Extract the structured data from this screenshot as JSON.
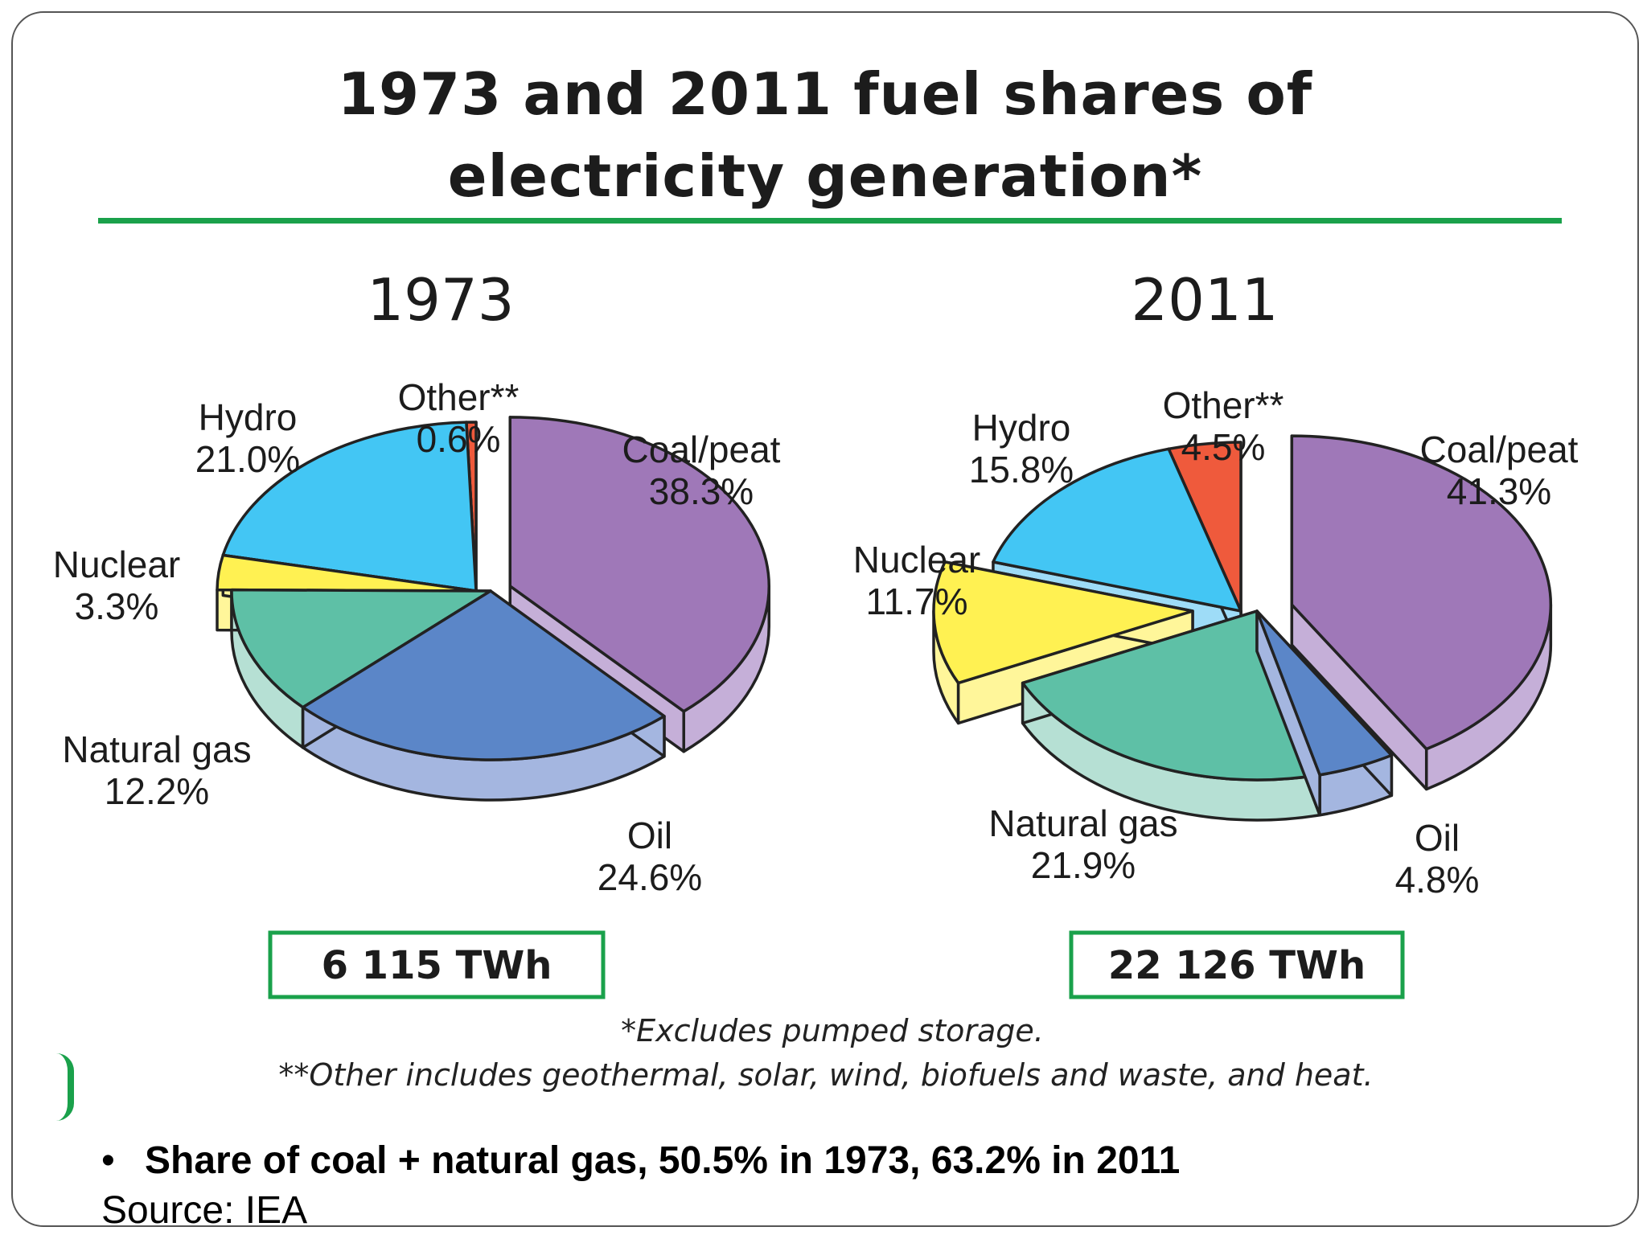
{
  "slide": {
    "title_line1": "1973 and 2011 fuel shares of",
    "title_line2": "electricity generation*",
    "footnote1": "*Excludes pumped storage.",
    "footnote2": "**Other includes geothermal, solar, wind, biofuels and waste, and heat.",
    "bullet": "Share of coal + natural gas, 50.5% in 1973, 63.2% in 2011",
    "source": "Source: IEA"
  },
  "chart_data": [
    {
      "type": "pie",
      "title": "1973",
      "total": "6 115 TWh",
      "slices": [
        {
          "label": "Coal/peat",
          "value": 38.3,
          "display": "38.3%",
          "color": "#9f78b8",
          "side_color": "#c5afd8"
        },
        {
          "label": "Oil",
          "value": 24.6,
          "display": "24.6%",
          "color": "#5b86c8",
          "side_color": "#a4b6e0"
        },
        {
          "label": "Natural gas",
          "value": 12.2,
          "display": "12.2%",
          "color": "#5ec0a6",
          "side_color": "#b6e0d4"
        },
        {
          "label": "Nuclear",
          "value": 3.3,
          "display": "3.3%",
          "color": "#fff152",
          "side_color": "#fff69a"
        },
        {
          "label": "Hydro",
          "value": 21.0,
          "display": "21.0%",
          "color": "#43c6f4",
          "side_color": "#9edcf7"
        },
        {
          "label": "Other**",
          "value": 0.6,
          "display": "0.6%",
          "color": "#ef5a3c",
          "side_color": "#f5a08a"
        }
      ]
    },
    {
      "type": "pie",
      "title": "2011",
      "total": "22 126 TWh",
      "slices": [
        {
          "label": "Coal/peat",
          "value": 41.3,
          "display": "41.3%",
          "color": "#9f78b8",
          "side_color": "#c5afd8"
        },
        {
          "label": "Oil",
          "value": 4.8,
          "display": "4.8%",
          "color": "#5b86c8",
          "side_color": "#a4b6e0"
        },
        {
          "label": "Natural gas",
          "value": 21.9,
          "display": "21.9%",
          "color": "#5ec0a6",
          "side_color": "#b6e0d4"
        },
        {
          "label": "Nuclear",
          "value": 11.7,
          "display": "11.7%",
          "color": "#fff152",
          "side_color": "#fff69a"
        },
        {
          "label": "Hydro",
          "value": 15.8,
          "display": "15.8%",
          "color": "#43c6f4",
          "side_color": "#9edcf7"
        },
        {
          "label": "Other**",
          "value": 4.5,
          "display": "4.5%",
          "color": "#ef5a3c",
          "side_color": "#f5a08a"
        }
      ]
    }
  ],
  "colors": {
    "accent_green": "#1aa14b",
    "outline": "#222222"
  }
}
